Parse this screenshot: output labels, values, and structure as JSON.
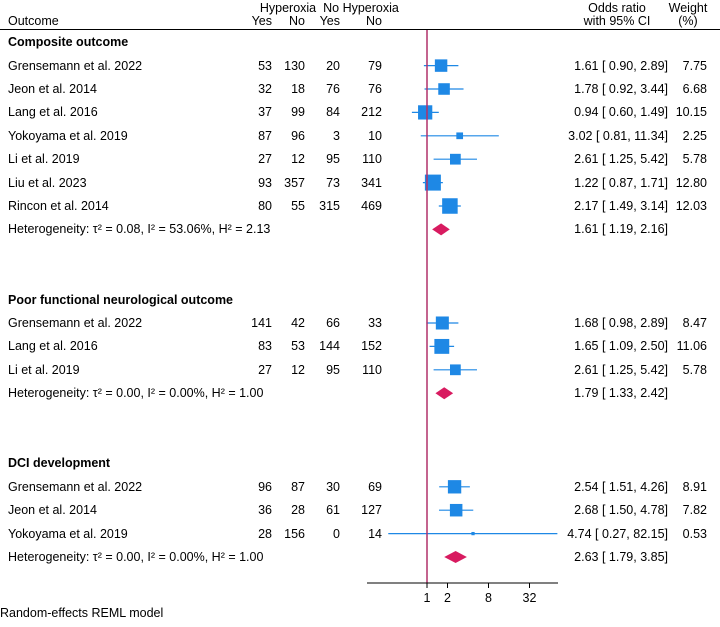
{
  "chart_data": {
    "type": "forest",
    "headers": {
      "outcome": "Outcome",
      "group1": "Hyperoxia",
      "group2": "No Hyperoxia",
      "yes": "Yes",
      "no": "No",
      "or_line1": "Odds ratio",
      "or_line2": "with 95% CI",
      "weight_line1": "Weight",
      "weight_line2": "(%)"
    },
    "xscale": "log2",
    "xlim": [
      0.25,
      64
    ],
    "xticks": [
      1,
      2,
      8,
      32
    ],
    "xtick_labels": [
      "1",
      "2",
      "8",
      "32"
    ],
    "reference_line": 1,
    "groups": [
      {
        "name": "Composite outcome",
        "studies": [
          {
            "study": "Grensemann et al. 2022",
            "h_yes": "53",
            "h_no": "130",
            "n_yes": "20",
            "n_no": "79",
            "or": 1.61,
            "lo": 0.9,
            "hi": 2.89,
            "ci_text": "1.61 [ 0.90,   2.89]",
            "weight": 7.75,
            "weight_text": "7.75"
          },
          {
            "study": "Jeon et al. 2014",
            "h_yes": "32",
            "h_no": "18",
            "n_yes": "76",
            "n_no": "76",
            "or": 1.78,
            "lo": 0.92,
            "hi": 3.44,
            "ci_text": "1.78 [ 0.92,   3.44]",
            "weight": 6.68,
            "weight_text": "6.68"
          },
          {
            "study": "Lang et al. 2016",
            "h_yes": "37",
            "h_no": "99",
            "n_yes": "84",
            "n_no": "212",
            "or": 0.94,
            "lo": 0.6,
            "hi": 1.49,
            "ci_text": "0.94 [ 0.60,   1.49]",
            "weight": 10.15,
            "weight_text": "10.15"
          },
          {
            "study": "Yokoyama et al. 2019",
            "h_yes": "87",
            "h_no": "96",
            "n_yes": "3",
            "n_no": "10",
            "or": 3.02,
            "lo": 0.81,
            "hi": 11.34,
            "ci_text": "3.02 [ 0.81,  11.34]",
            "weight": 2.25,
            "weight_text": "2.25"
          },
          {
            "study": "Li et al. 2019",
            "h_yes": "27",
            "h_no": "12",
            "n_yes": "95",
            "n_no": "110",
            "or": 2.61,
            "lo": 1.25,
            "hi": 5.42,
            "ci_text": "2.61 [ 1.25,   5.42]",
            "weight": 5.78,
            "weight_text": "5.78"
          },
          {
            "study": "Liu et al. 2023",
            "h_yes": "93",
            "h_no": "357",
            "n_yes": "73",
            "n_no": "341",
            "or": 1.22,
            "lo": 0.87,
            "hi": 1.71,
            "ci_text": "1.22 [ 0.87,   1.71]",
            "weight": 12.8,
            "weight_text": "12.80"
          },
          {
            "study": "Rincon et al. 2014",
            "h_yes": "80",
            "h_no": "55",
            "n_yes": "315",
            "n_no": "469",
            "or": 2.17,
            "lo": 1.49,
            "hi": 3.14,
            "ci_text": "2.17 [ 1.49,   3.14]",
            "weight": 12.03,
            "weight_text": "12.03"
          }
        ],
        "pooled": {
          "label": "Heterogeneity: τ² = 0.08, I² = 53.06%, H² = 2.13",
          "or": 1.61,
          "lo": 1.19,
          "hi": 2.16,
          "ci_text": "1.61 [ 1.19,   2.16]"
        }
      },
      {
        "name": "Poor functional neurological outcome",
        "studies": [
          {
            "study": "Grensemann et al. 2022",
            "h_yes": "141",
            "h_no": "42",
            "n_yes": "66",
            "n_no": "33",
            "or": 1.68,
            "lo": 0.98,
            "hi": 2.89,
            "ci_text": "1.68 [ 0.98,   2.89]",
            "weight": 8.47,
            "weight_text": "8.47"
          },
          {
            "study": "Lang et al. 2016",
            "h_yes": "83",
            "h_no": "53",
            "n_yes": "144",
            "n_no": "152",
            "or": 1.65,
            "lo": 1.09,
            "hi": 2.5,
            "ci_text": "1.65 [ 1.09,   2.50]",
            "weight": 11.06,
            "weight_text": "11.06"
          },
          {
            "study": "Li et al. 2019",
            "h_yes": "27",
            "h_no": "12",
            "n_yes": "95",
            "n_no": "110",
            "or": 2.61,
            "lo": 1.25,
            "hi": 5.42,
            "ci_text": "2.61 [ 1.25,   5.42]",
            "weight": 5.78,
            "weight_text": "5.78"
          }
        ],
        "pooled": {
          "label": "Heterogeneity: τ² = 0.00, I² = 0.00%, H² = 1.00",
          "or": 1.79,
          "lo": 1.33,
          "hi": 2.42,
          "ci_text": "1.79 [ 1.33,   2.42]"
        }
      },
      {
        "name": "DCI development",
        "studies": [
          {
            "study": "Grensemann et al. 2022",
            "h_yes": "96",
            "h_no": "87",
            "n_yes": "30",
            "n_no": "69",
            "or": 2.54,
            "lo": 1.51,
            "hi": 4.26,
            "ci_text": "2.54 [ 1.51,   4.26]",
            "weight": 8.91,
            "weight_text": "8.91"
          },
          {
            "study": "Jeon et al. 2014",
            "h_yes": "36",
            "h_no": "28",
            "n_yes": "61",
            "n_no": "127",
            "or": 2.68,
            "lo": 1.5,
            "hi": 4.78,
            "ci_text": "2.68 [ 1.50,   4.78]",
            "weight": 7.82,
            "weight_text": "7.82"
          },
          {
            "study": "Yokoyama et al. 2019",
            "h_yes": "28",
            "h_no": "156",
            "n_yes": "0",
            "n_no": "14",
            "or": 4.74,
            "lo": 0.27,
            "hi": 82.15,
            "ci_text": "4.74 [ 0.27,  82.15]",
            "weight": 0.53,
            "weight_text": "0.53"
          }
        ],
        "pooled": {
          "label": "Heterogeneity: τ² = 0.00, I² = 0.00%, H² = 1.00",
          "or": 2.63,
          "lo": 1.79,
          "hi": 3.85,
          "ci_text": "2.63 [ 1.79,   3.85]"
        }
      }
    ],
    "note": "Random-effects REML model",
    "colors": {
      "study_marker": "#1e88e5",
      "pooled_diamond": "#d81b60",
      "reference_line": "#b0306a",
      "axis": "#000000"
    }
  }
}
